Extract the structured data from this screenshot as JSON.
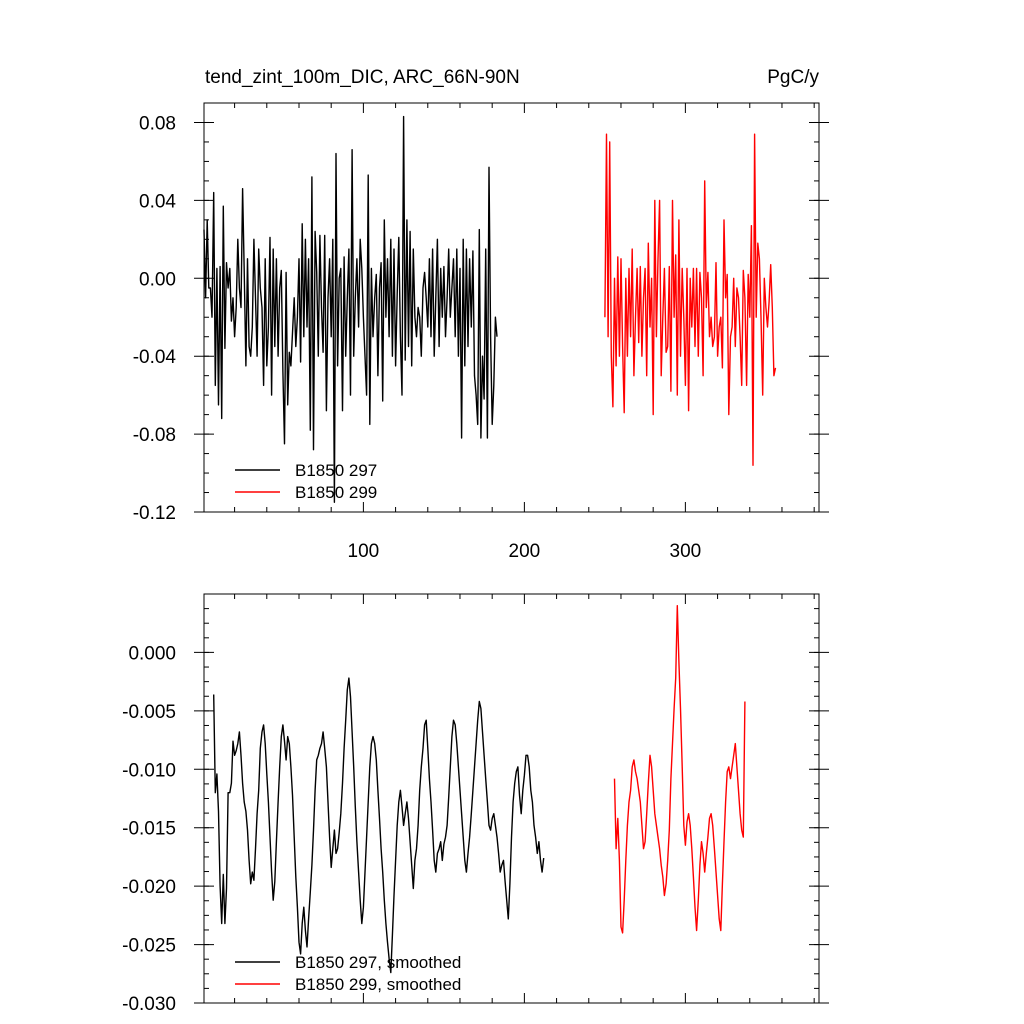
{
  "chart_data": [
    {
      "type": "line",
      "title": "tend_zint_100m_DIC, ARC_66N-90N",
      "units": "PgC/y",
      "xlim": [
        1,
        383
      ],
      "ylim": [
        -0.12,
        0.09
      ],
      "xticks": [
        100,
        200,
        300
      ],
      "yticks": [
        0.08,
        0.04,
        0.0,
        -0.04,
        -0.08,
        -0.12
      ],
      "ytick_labels": [
        "0.08",
        "0.04",
        "0.00",
        "-0.04",
        "-0.08",
        "-0.12"
      ],
      "legend": "bottom-left",
      "series": [
        {
          "name": "B1850 297",
          "color": "#000000",
          "x_start": 1,
          "values": [
            0.025,
            -0.01,
            0.03,
            -0.005,
            -0.005,
            -0.02,
            0.044,
            -0.055,
            0.005,
            -0.065,
            0.006,
            -0.072,
            0.037,
            -0.036,
            0.008,
            -0.005,
            0.005,
            -0.022,
            -0.01,
            -0.03,
            -0.015,
            0.02,
            -0.005,
            -0.015,
            0.046,
            0.004,
            -0.045,
            0.01,
            -0.035,
            -0.04,
            -0.025,
            0.02,
            -0.01,
            -0.04,
            0.015,
            -0.005,
            -0.015,
            -0.055,
            0.01,
            -0.045,
            -0.025,
            0.021,
            -0.06,
            0.015,
            -0.035,
            0.01,
            -0.04,
            -0.005,
            0.004,
            -0.048,
            -0.085,
            0.003,
            -0.065,
            -0.038,
            -0.045,
            -0.028,
            -0.01,
            -0.035,
            -0.02,
            0.01,
            -0.043,
            0.028,
            -0.03,
            0.02,
            -0.025,
            0.01,
            -0.078,
            0.052,
            -0.088,
            0.024,
            0.003,
            -0.04,
            0.022,
            -0.015,
            -0.038,
            0.022,
            -0.068,
            -0.01,
            0.01,
            -0.03,
            0.02,
            -0.115,
            0.064,
            -0.045,
            0.0,
            0.005,
            -0.068,
            0.011,
            -0.04,
            -0.01,
            0.015,
            -0.06,
            0.066,
            -0.04,
            -0.01,
            0.01,
            -0.025,
            0.02,
            0.005,
            -0.02,
            -0.04,
            -0.06,
            0.053,
            -0.075,
            0.005,
            -0.03,
            -0.01,
            0.002,
            -0.05,
            -0.005,
            0.008,
            -0.063,
            0.03,
            -0.02,
            0.01,
            -0.03,
            0.02,
            -0.04,
            0.015,
            -0.045,
            -0.008,
            0.021,
            -0.03,
            -0.06,
            0.083,
            -0.042,
            0.03,
            -0.035,
            0.024,
            -0.045,
            0.015,
            -0.02,
            -0.03,
            -0.015,
            -0.02,
            -0.04,
            -0.005,
            0.003,
            -0.01,
            -0.025,
            0.01,
            -0.03,
            0.015,
            -0.04,
            -0.01,
            0.02,
            -0.035,
            0.005,
            -0.02,
            0.006,
            -0.03,
            -0.01,
            0.015,
            -0.02,
            -0.005,
            0.01,
            -0.03,
            0.015,
            -0.04,
            0.005,
            -0.082,
            0.02,
            -0.045,
            0.015,
            -0.035,
            0.01,
            -0.025,
            0.014,
            -0.05,
            -0.06,
            -0.075,
            0.025,
            -0.082,
            -0.04,
            -0.062,
            0.015,
            -0.082,
            0.057,
            -0.03,
            -0.075,
            -0.055,
            -0.02,
            -0.03
          ]
        },
        {
          "name": "B1850 299",
          "color": "#ff0000",
          "x_start": 250,
          "values": [
            -0.02,
            0.074,
            -0.03,
            0.07,
            -0.04,
            -0.066,
            0.0,
            -0.045,
            0.011,
            -0.04,
            0.01,
            -0.035,
            -0.069,
            0.0,
            -0.04,
            0.005,
            -0.03,
            0.015,
            -0.05,
            -0.02,
            0.005,
            -0.033,
            0.006,
            -0.04,
            -0.01,
            0.005,
            -0.05,
            0.018,
            -0.025,
            0.0,
            -0.07,
            0.04,
            -0.03,
            0.01,
            0.04,
            -0.05,
            -0.02,
            0.005,
            -0.038,
            -0.035,
            0.006,
            -0.058,
            0.04,
            -0.02,
            0.012,
            -0.06,
            0.03,
            -0.04,
            0.005,
            -0.02,
            -0.055,
            0.005,
            -0.068,
            0.0,
            -0.025,
            0.005,
            -0.035,
            0.005,
            -0.04,
            0.003,
            -0.01,
            -0.05,
            0.05,
            -0.015,
            0.003,
            -0.03,
            -0.02,
            -0.035,
            -0.03,
            0.008,
            -0.04,
            -0.025,
            -0.02,
            -0.046,
            0.03,
            -0.01,
            0.002,
            -0.07,
            -0.03,
            -0.025,
            0.0,
            -0.035,
            -0.005,
            -0.01,
            -0.03,
            -0.055,
            0.004,
            -0.01,
            -0.055,
            0.002,
            -0.02,
            0.027,
            -0.096,
            0.074,
            -0.02,
            0.018,
            0.01,
            -0.02,
            -0.06,
            0.0,
            -0.015,
            -0.025,
            -0.012,
            0.007,
            -0.015,
            -0.05,
            -0.046
          ]
        }
      ]
    },
    {
      "type": "line",
      "xlim": [
        1,
        383
      ],
      "ylim": [
        -0.03,
        0.005
      ],
      "yticks": [
        0.0,
        -0.005,
        -0.01,
        -0.015,
        -0.02,
        -0.025,
        -0.03
      ],
      "ytick_labels": [
        "0.000",
        "-0.005",
        "-0.010",
        "-0.015",
        "-0.020",
        "-0.025",
        "-0.030"
      ],
      "legend": "bottom-left",
      "series": [
        {
          "name": "B1850 297, smoothed",
          "color": "#000000",
          "x_start": 7,
          "values": [
            -0.0036,
            -0.012,
            -0.0104,
            -0.0136,
            -0.02,
            -0.0232,
            -0.019,
            -0.0232,
            -0.0202,
            -0.012,
            -0.012,
            -0.0112,
            -0.0076,
            -0.0088,
            -0.0084,
            -0.0078,
            -0.0068,
            -0.0088,
            -0.0112,
            -0.0128,
            -0.0136,
            -0.0152,
            -0.0178,
            -0.0198,
            -0.0188,
            -0.0195,
            -0.0168,
            -0.0138,
            -0.0118,
            -0.0082,
            -0.0068,
            -0.0062,
            -0.0078,
            -0.0104,
            -0.0128,
            -0.0158,
            -0.0188,
            -0.0212,
            -0.0196,
            -0.0162,
            -0.0128,
            -0.0098,
            -0.0072,
            -0.0062,
            -0.0076,
            -0.0092,
            -0.0072,
            -0.0078,
            -0.0098,
            -0.0122,
            -0.0158,
            -0.0192,
            -0.0218,
            -0.0248,
            -0.0258,
            -0.0232,
            -0.0218,
            -0.0238,
            -0.0252,
            -0.0228,
            -0.0205,
            -0.0182,
            -0.0152,
            -0.0118,
            -0.0092,
            -0.0088,
            -0.0082,
            -0.0078,
            -0.0068,
            -0.0082,
            -0.0098,
            -0.0128,
            -0.0158,
            -0.0184,
            -0.0168,
            -0.0152,
            -0.0172,
            -0.0168,
            -0.0154,
            -0.0138,
            -0.0112,
            -0.0082,
            -0.0058,
            -0.0032,
            -0.0022,
            -0.0038,
            -0.0068,
            -0.0098,
            -0.0132,
            -0.0162,
            -0.0188,
            -0.0212,
            -0.0232,
            -0.0218,
            -0.0188,
            -0.0158,
            -0.0128,
            -0.0098,
            -0.0078,
            -0.0072,
            -0.0078,
            -0.0092,
            -0.0118,
            -0.0142,
            -0.0168,
            -0.0188,
            -0.0212,
            -0.0232,
            -0.0248,
            -0.0262,
            -0.0274,
            -0.0242,
            -0.0208,
            -0.0178,
            -0.0148,
            -0.0128,
            -0.0118,
            -0.0132,
            -0.0148,
            -0.0138,
            -0.0128,
            -0.0142,
            -0.0162,
            -0.0182,
            -0.0202,
            -0.0178,
            -0.0168,
            -0.0148,
            -0.0118,
            -0.0098,
            -0.0082,
            -0.0062,
            -0.0058,
            -0.0082,
            -0.0108,
            -0.0128,
            -0.0152,
            -0.0178,
            -0.0188,
            -0.0172,
            -0.0168,
            -0.0162,
            -0.0178,
            -0.0164,
            -0.0158,
            -0.0148,
            -0.0124,
            -0.0098,
            -0.0072,
            -0.0058,
            -0.0062,
            -0.0078,
            -0.0098,
            -0.0118,
            -0.0138,
            -0.0158,
            -0.0178,
            -0.0188,
            -0.0172,
            -0.0158,
            -0.0138,
            -0.0118,
            -0.0098,
            -0.0078,
            -0.0058,
            -0.0042,
            -0.0048,
            -0.0068,
            -0.0088,
            -0.0108,
            -0.0128,
            -0.0148,
            -0.0152,
            -0.0142,
            -0.0138,
            -0.0148,
            -0.0158,
            -0.0172,
            -0.0188,
            -0.0182,
            -0.0178,
            -0.0196,
            -0.0212,
            -0.0228,
            -0.0198,
            -0.0158,
            -0.0128,
            -0.0112,
            -0.0102,
            -0.0098,
            -0.0122,
            -0.0138,
            -0.0118,
            -0.0105,
            -0.0088,
            -0.0088,
            -0.0098,
            -0.0118,
            -0.0128,
            -0.0148,
            -0.0158,
            -0.0172,
            -0.0162,
            -0.0178,
            -0.0188,
            -0.0176
          ]
        },
        {
          "name": "B1850 299, smoothed",
          "color": "#ff0000",
          "x_start": 256,
          "values": [
            -0.0108,
            -0.0168,
            -0.0142,
            -0.0178,
            -0.0235,
            -0.024,
            -0.0212,
            -0.0178,
            -0.0148,
            -0.0128,
            -0.0118,
            -0.0098,
            -0.0092,
            -0.0102,
            -0.0108,
            -0.0118,
            -0.0128,
            -0.0148,
            -0.0168,
            -0.0162,
            -0.0138,
            -0.0112,
            -0.0088,
            -0.0098,
            -0.0118,
            -0.0138,
            -0.0148,
            -0.0158,
            -0.0168,
            -0.0182,
            -0.0192,
            -0.0208,
            -0.0198,
            -0.0178,
            -0.0152,
            -0.0108,
            -0.0078,
            -0.0048,
            -0.0022,
            0.004,
            -0.0008,
            -0.0048,
            -0.0098,
            -0.0148,
            -0.0165,
            -0.0145,
            -0.0138,
            -0.0148,
            -0.0168,
            -0.0192,
            -0.0218,
            -0.0238,
            -0.0212,
            -0.0182,
            -0.0162,
            -0.0172,
            -0.0188,
            -0.0172,
            -0.0158,
            -0.0142,
            -0.0138,
            -0.0148,
            -0.0168,
            -0.0188,
            -0.0208,
            -0.0228,
            -0.0238,
            -0.0198,
            -0.0162,
            -0.0128,
            -0.0102,
            -0.0098,
            -0.0108,
            -0.0098,
            -0.0088,
            -0.0078,
            -0.0098,
            -0.0118,
            -0.0138,
            -0.0152,
            -0.0158,
            -0.0042
          ]
        }
      ]
    }
  ]
}
